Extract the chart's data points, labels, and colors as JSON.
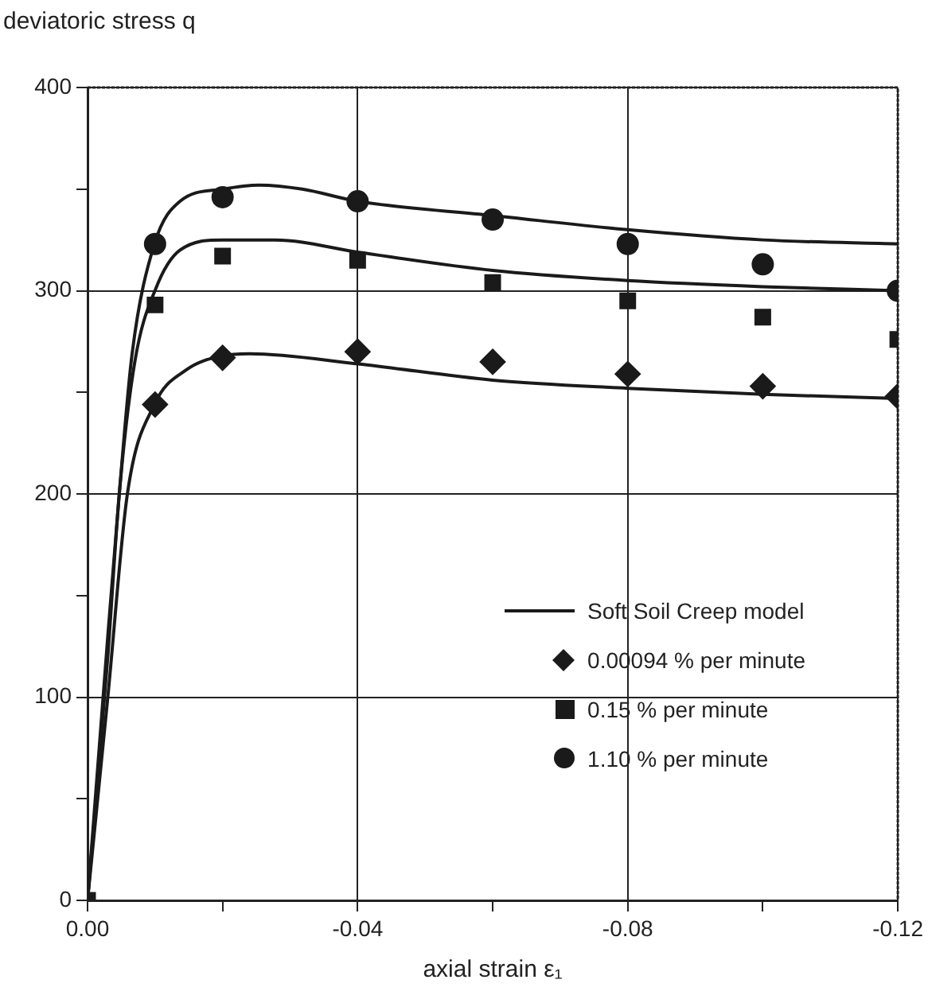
{
  "chart_data": {
    "type": "scatter",
    "xlabel": "axial strain ε₁",
    "ylabel": "deviatoric stress q",
    "xlim": [
      0,
      -0.12
    ],
    "ylim": [
      0,
      400
    ],
    "xticks": [
      {
        "value": 0,
        "label": "0.00"
      },
      {
        "value": -0.02,
        "label": null
      },
      {
        "value": -0.04,
        "label": "-0.04"
      },
      {
        "value": -0.06,
        "label": null
      },
      {
        "value": -0.08,
        "label": "-0.08"
      },
      {
        "value": -0.1,
        "label": null
      },
      {
        "value": -0.12,
        "label": "-0.12"
      }
    ],
    "yticks": [
      0,
      {
        "value": 50,
        "label": null
      },
      100,
      {
        "value": 150,
        "label": null
      },
      200,
      {
        "value": 250,
        "label": null
      },
      300,
      {
        "value": 350,
        "label": null
      },
      400
    ],
    "grid": true,
    "legend": "bottom right",
    "series": [
      {
        "type": "line",
        "name": "Soft Soil Creep model",
        "color": "#1a1a1a",
        "marker": "none",
        "x": [
          0,
          -0.003,
          -0.0047,
          -0.0066,
          -0.0099,
          -0.0137,
          -0.02,
          -0.0254,
          -0.0318,
          -0.04,
          -0.06,
          -0.08,
          -0.1,
          -0.12
        ],
        "values": [
          0,
          130,
          200,
          269,
          323,
          344,
          350,
          352,
          350,
          344,
          337,
          330,
          325,
          323
        ]
      },
      {
        "type": "line",
        "color": "#1a1a1a",
        "marker": "none",
        "x": [
          0,
          -0.003,
          -0.0047,
          -0.007,
          -0.0101,
          -0.0137,
          -0.02,
          -0.0278,
          -0.04,
          -0.06,
          -0.08,
          -0.1,
          -0.12
        ],
        "values": [
          0,
          120,
          200,
          265,
          301,
          320,
          325,
          325,
          319,
          310,
          305,
          302,
          300
        ]
      },
      {
        "type": "line",
        "color": "#1a1a1a",
        "marker": "none",
        "x": [
          0,
          -0.003,
          -0.0059,
          -0.0099,
          -0.0146,
          -0.02,
          -0.024,
          -0.04,
          -0.06,
          -0.08,
          -0.1,
          -0.12
        ],
        "values": [
          0,
          100,
          200,
          244,
          261,
          268,
          269,
          264,
          256,
          252,
          249,
          247
        ]
      },
      {
        "name": "0.00094 % per minute",
        "color": "#1a1a1a",
        "marker": "diamond",
        "x": [
          -0.01,
          -0.02,
          -0.04,
          -0.06,
          -0.08,
          -0.1,
          -0.12
        ],
        "values": [
          244,
          267,
          270,
          265,
          259,
          253,
          248
        ]
      },
      {
        "name": "0.15 % per minute",
        "color": "#1a1a1a",
        "marker": "square",
        "x": [
          0,
          -0.01,
          -0.02,
          -0.04,
          -0.06,
          -0.08,
          -0.1,
          -0.12
        ],
        "values": [
          0,
          293,
          317,
          315,
          304,
          295,
          287,
          276
        ]
      },
      {
        "name": "1.10 % per minute",
        "color": "#1a1a1a",
        "marker": "circle",
        "x": [
          -0.01,
          -0.02,
          -0.04,
          -0.06,
          -0.08,
          -0.1,
          -0.12
        ],
        "values": [
          323,
          346,
          344,
          335,
          323,
          313,
          300
        ]
      }
    ]
  }
}
